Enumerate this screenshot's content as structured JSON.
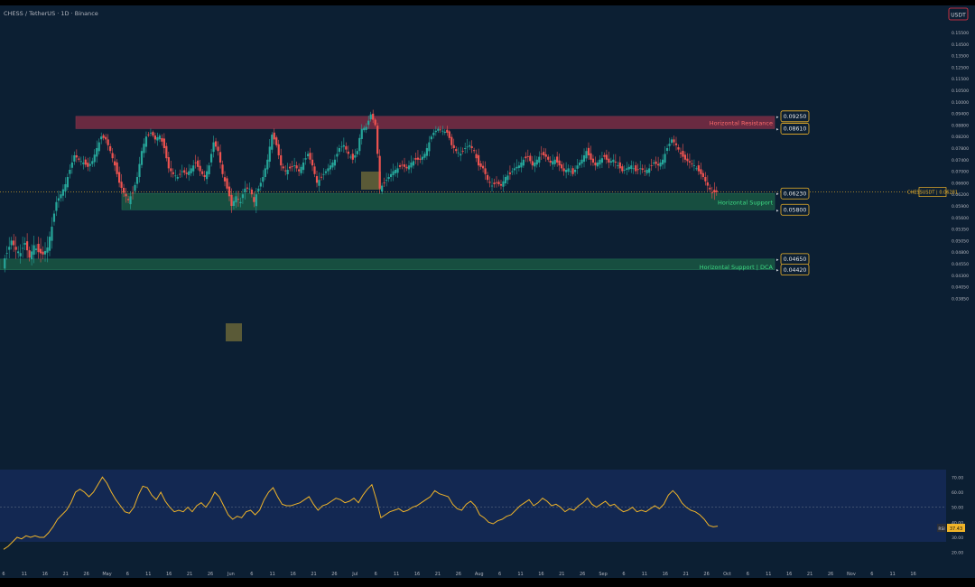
{
  "header": {
    "symbol_title": "CHESS / TetherUS · 1D · Binance",
    "currency": "USDT"
  },
  "colors": {
    "background": "#0c1f33",
    "up": "#26a69a",
    "down": "#ef5350",
    "resistance_zone": "#b8334d",
    "support_zone": "#1f6e4a",
    "rsi_line": "#f0b429",
    "label_border": "#f0b429",
    "resistance_text": "#ff6b6b",
    "support_text": "#3ddc84"
  },
  "chart_data": [
    {
      "type": "candlestick",
      "title": "CHESS / TetherUS · 1D · Binance",
      "y_ticks": [
        "0.15500",
        "0.14500",
        "0.13500",
        "0.12500",
        "0.11500",
        "0.10500",
        "0.10000",
        "0.09400",
        "0.08800",
        "0.08200",
        "0.07800",
        "0.07400",
        "0.07000",
        "0.06600",
        "0.06200",
        "0.05900",
        "0.05600",
        "0.05350",
        "0.05050",
        "0.04800",
        "0.04550",
        "0.04300",
        "0.04050",
        "0.03850"
      ],
      "x_ticks": [
        "6",
        "11",
        "16",
        "21",
        "26",
        "May",
        "6",
        "11",
        "16",
        "21",
        "26",
        "Jun",
        "6",
        "11",
        "16",
        "21",
        "26",
        "Jul",
        "6",
        "11",
        "16",
        "21",
        "26",
        "Aug",
        "6",
        "11",
        "16",
        "21",
        "26",
        "Sep",
        "6",
        "11",
        "16",
        "21",
        "26",
        "Oct",
        "6",
        "11",
        "16",
        "21",
        "26",
        "Nov",
        "6",
        "11",
        "16"
      ],
      "current_price": {
        "symbol": "CHESSUSDT",
        "value": "0.06281"
      },
      "zones": [
        {
          "name": "Horizontal Resistance",
          "top": 0.0925,
          "bottom": 0.0861,
          "top_label": "0.09250",
          "bottom_label": "0.08610",
          "kind": "resistance"
        },
        {
          "name": "Horizontal Support",
          "top": 0.0623,
          "bottom": 0.058,
          "top_label": "0.06230",
          "bottom_label": "0.05800",
          "kind": "support"
        },
        {
          "name": "Horizontal Support | DCA",
          "top": 0.0465,
          "bottom": 0.0442,
          "top_label": "0.04650",
          "bottom_label": "0.04420",
          "kind": "support"
        }
      ],
      "close_path": [
        [
          0,
          0.0455
        ],
        [
          5,
          0.0478
        ],
        [
          10,
          0.0505
        ],
        [
          15,
          0.0485
        ],
        [
          20,
          0.0478
        ],
        [
          25,
          0.05
        ],
        [
          30,
          0.0468
        ],
        [
          35,
          0.0495
        ],
        [
          40,
          0.048
        ],
        [
          45,
          0.0475
        ],
        [
          50,
          0.049
        ],
        [
          55,
          0.054
        ],
        [
          60,
          0.06
        ],
        [
          65,
          0.062
        ],
        [
          70,
          0.0655
        ],
        [
          75,
          0.0705
        ],
        [
          80,
          0.0755
        ],
        [
          85,
          0.074
        ],
        [
          90,
          0.073
        ],
        [
          95,
          0.0715
        ],
        [
          100,
          0.0735
        ],
        [
          105,
          0.078
        ],
        [
          110,
          0.082
        ],
        [
          115,
          0.081
        ],
        [
          120,
          0.077
        ],
        [
          125,
          0.072
        ],
        [
          130,
          0.066
        ],
        [
          135,
          0.0625
        ],
        [
          140,
          0.0605
        ],
        [
          145,
          0.0625
        ],
        [
          150,
          0.068
        ],
        [
          155,
          0.077
        ],
        [
          160,
          0.082
        ],
        [
          165,
          0.084
        ],
        [
          170,
          0.081
        ],
        [
          175,
          0.0825
        ],
        [
          180,
          0.078
        ],
        [
          185,
          0.071
        ],
        [
          190,
          0.069
        ],
        [
          195,
          0.068
        ],
        [
          200,
          0.07
        ],
        [
          205,
          0.069
        ],
        [
          210,
          0.071
        ],
        [
          215,
          0.073
        ],
        [
          220,
          0.07
        ],
        [
          225,
          0.068
        ],
        [
          230,
          0.072
        ],
        [
          235,
          0.08
        ],
        [
          240,
          0.077
        ],
        [
          245,
          0.069
        ],
        [
          250,
          0.064
        ],
        [
          255,
          0.059
        ],
        [
          260,
          0.0615
        ],
        [
          265,
          0.06
        ],
        [
          270,
          0.064
        ],
        [
          275,
          0.064
        ],
        [
          280,
          0.06
        ],
        [
          285,
          0.064
        ],
        [
          290,
          0.068
        ],
        [
          295,
          0.074
        ],
        [
          300,
          0.083
        ],
        [
          305,
          0.079
        ],
        [
          310,
          0.072
        ],
        [
          315,
          0.07
        ],
        [
          320,
          0.071
        ],
        [
          325,
          0.072
        ],
        [
          330,
          0.07
        ],
        [
          335,
          0.073
        ],
        [
          340,
          0.076
        ],
        [
          345,
          0.072
        ],
        [
          350,
          0.066
        ],
        [
          355,
          0.068
        ],
        [
          360,
          0.07
        ],
        [
          365,
          0.072
        ],
        [
          370,
          0.074
        ],
        [
          375,
          0.078
        ],
        [
          380,
          0.079
        ],
        [
          385,
          0.076
        ],
        [
          390,
          0.074
        ],
        [
          395,
          0.077
        ],
        [
          400,
          0.086
        ],
        [
          405,
          0.087
        ],
        [
          410,
          0.0935
        ],
        [
          415,
          0.088
        ],
        [
          420,
          0.064
        ],
        [
          425,
          0.066
        ],
        [
          430,
          0.068
        ],
        [
          435,
          0.07
        ],
        [
          440,
          0.071
        ],
        [
          445,
          0.072
        ],
        [
          450,
          0.071
        ],
        [
          455,
          0.073
        ],
        [
          460,
          0.074
        ],
        [
          465,
          0.074
        ],
        [
          470,
          0.076
        ],
        [
          475,
          0.08
        ],
        [
          480,
          0.084
        ],
        [
          485,
          0.086
        ],
        [
          490,
          0.085
        ],
        [
          495,
          0.084
        ],
        [
          500,
          0.079
        ],
        [
          505,
          0.077
        ],
        [
          510,
          0.076
        ],
        [
          515,
          0.078
        ],
        [
          520,
          0.079
        ],
        [
          525,
          0.077
        ],
        [
          530,
          0.072
        ],
        [
          535,
          0.071
        ],
        [
          540,
          0.067
        ],
        [
          545,
          0.065
        ],
        [
          550,
          0.066
        ],
        [
          555,
          0.065
        ],
        [
          560,
          0.068
        ],
        [
          565,
          0.069
        ],
        [
          570,
          0.071
        ],
        [
          575,
          0.072
        ],
        [
          580,
          0.074
        ],
        [
          585,
          0.075
        ],
        [
          590,
          0.072
        ],
        [
          595,
          0.074
        ],
        [
          600,
          0.076
        ],
        [
          605,
          0.075
        ],
        [
          610,
          0.073
        ],
        [
          615,
          0.074
        ],
        [
          620,
          0.072
        ],
        [
          625,
          0.07
        ],
        [
          630,
          0.071
        ],
        [
          635,
          0.069
        ],
        [
          640,
          0.072
        ],
        [
          645,
          0.074
        ],
        [
          650,
          0.077
        ],
        [
          655,
          0.074
        ],
        [
          660,
          0.072
        ],
        [
          665,
          0.074
        ],
        [
          670,
          0.075
        ],
        [
          675,
          0.073
        ],
        [
          680,
          0.074
        ],
        [
          685,
          0.072
        ],
        [
          690,
          0.07
        ],
        [
          695,
          0.071
        ],
        [
          700,
          0.072
        ],
        [
          705,
          0.07
        ],
        [
          710,
          0.071
        ],
        [
          715,
          0.07
        ],
        [
          720,
          0.071
        ],
        [
          725,
          0.073
        ],
        [
          730,
          0.072
        ],
        [
          735,
          0.074
        ],
        [
          740,
          0.078
        ],
        [
          745,
          0.081
        ],
        [
          750,
          0.079
        ],
        [
          755,
          0.076
        ],
        [
          760,
          0.074
        ],
        [
          765,
          0.073
        ],
        [
          770,
          0.072
        ],
        [
          775,
          0.07
        ],
        [
          780,
          0.068
        ],
        [
          785,
          0.065
        ],
        [
          790,
          0.0625
        ],
        [
          795,
          0.0628
        ]
      ]
    },
    {
      "type": "line",
      "title": "RSI",
      "indicator_label": "RSI",
      "current_value": "37.43",
      "y_ticks": [
        "70.00",
        "60.00",
        "50.00",
        "40.00",
        "30.00",
        "20.00"
      ],
      "ylim": [
        15,
        75
      ],
      "midline": 50,
      "values": [
        [
          0,
          22
        ],
        [
          5,
          24
        ],
        [
          10,
          27
        ],
        [
          15,
          30
        ],
        [
          20,
          29
        ],
        [
          25,
          31
        ],
        [
          30,
          30
        ],
        [
          35,
          31
        ],
        [
          40,
          30
        ],
        [
          45,
          30
        ],
        [
          50,
          33
        ],
        [
          55,
          37
        ],
        [
          60,
          42
        ],
        [
          65,
          45
        ],
        [
          70,
          48
        ],
        [
          75,
          53
        ],
        [
          80,
          60
        ],
        [
          85,
          62
        ],
        [
          90,
          60
        ],
        [
          95,
          57
        ],
        [
          100,
          60
        ],
        [
          105,
          65
        ],
        [
          110,
          70
        ],
        [
          115,
          66
        ],
        [
          120,
          60
        ],
        [
          125,
          55
        ],
        [
          130,
          51
        ],
        [
          135,
          47
        ],
        [
          140,
          46
        ],
        [
          145,
          50
        ],
        [
          150,
          58
        ],
        [
          155,
          64
        ],
        [
          160,
          63
        ],
        [
          165,
          58
        ],
        [
          170,
          55
        ],
        [
          175,
          60
        ],
        [
          180,
          54
        ],
        [
          185,
          50
        ],
        [
          190,
          47
        ],
        [
          195,
          48
        ],
        [
          200,
          47
        ],
        [
          205,
          50
        ],
        [
          210,
          47
        ],
        [
          215,
          51
        ],
        [
          220,
          53
        ],
        [
          225,
          50
        ],
        [
          230,
          54
        ],
        [
          235,
          60
        ],
        [
          240,
          57
        ],
        [
          245,
          51
        ],
        [
          250,
          45
        ],
        [
          255,
          42
        ],
        [
          260,
          44
        ],
        [
          265,
          43
        ],
        [
          270,
          47
        ],
        [
          275,
          48
        ],
        [
          280,
          45
        ],
        [
          285,
          48
        ],
        [
          290,
          55
        ],
        [
          295,
          60
        ],
        [
          300,
          63
        ],
        [
          305,
          57
        ],
        [
          310,
          52
        ],
        [
          315,
          51
        ],
        [
          320,
          51
        ],
        [
          325,
          52
        ],
        [
          330,
          53
        ],
        [
          335,
          55
        ],
        [
          340,
          57
        ],
        [
          345,
          52
        ],
        [
          350,
          48
        ],
        [
          355,
          51
        ],
        [
          360,
          52
        ],
        [
          365,
          54
        ],
        [
          370,
          56
        ],
        [
          375,
          55
        ],
        [
          380,
          53
        ],
        [
          385,
          54
        ],
        [
          390,
          56
        ],
        [
          395,
          53
        ],
        [
          400,
          58
        ],
        [
          405,
          62
        ],
        [
          410,
          65
        ],
        [
          415,
          55
        ],
        [
          420,
          43
        ],
        [
          425,
          45
        ],
        [
          430,
          47
        ],
        [
          435,
          48
        ],
        [
          440,
          49
        ],
        [
          445,
          47
        ],
        [
          450,
          48
        ],
        [
          455,
          50
        ],
        [
          460,
          51
        ],
        [
          465,
          53
        ],
        [
          470,
          55
        ],
        [
          475,
          57
        ],
        [
          480,
          61
        ],
        [
          485,
          59
        ],
        [
          490,
          58
        ],
        [
          495,
          57
        ],
        [
          500,
          52
        ],
        [
          505,
          49
        ],
        [
          510,
          48
        ],
        [
          515,
          52
        ],
        [
          520,
          54
        ],
        [
          525,
          51
        ],
        [
          530,
          45
        ],
        [
          535,
          43
        ],
        [
          540,
          40
        ],
        [
          545,
          39
        ],
        [
          550,
          41
        ],
        [
          555,
          42
        ],
        [
          560,
          44
        ],
        [
          565,
          45
        ],
        [
          570,
          48
        ],
        [
          575,
          51
        ],
        [
          580,
          53
        ],
        [
          585,
          55
        ],
        [
          590,
          51
        ],
        [
          595,
          53
        ],
        [
          600,
          56
        ],
        [
          605,
          54
        ],
        [
          610,
          51
        ],
        [
          615,
          52
        ],
        [
          620,
          50
        ],
        [
          625,
          47
        ],
        [
          630,
          49
        ],
        [
          635,
          48
        ],
        [
          640,
          51
        ],
        [
          645,
          53
        ],
        [
          650,
          56
        ],
        [
          655,
          52
        ],
        [
          660,
          50
        ],
        [
          665,
          52
        ],
        [
          670,
          54
        ],
        [
          675,
          51
        ],
        [
          680,
          52
        ],
        [
          685,
          49
        ],
        [
          690,
          47
        ],
        [
          695,
          48
        ],
        [
          700,
          50
        ],
        [
          705,
          47
        ],
        [
          710,
          48
        ],
        [
          715,
          47
        ],
        [
          720,
          49
        ],
        [
          725,
          51
        ],
        [
          730,
          49
        ],
        [
          735,
          52
        ],
        [
          740,
          58
        ],
        [
          745,
          61
        ],
        [
          750,
          58
        ],
        [
          755,
          53
        ],
        [
          760,
          50
        ],
        [
          765,
          48
        ],
        [
          770,
          47
        ],
        [
          775,
          45
        ],
        [
          780,
          42
        ],
        [
          785,
          38
        ],
        [
          790,
          37
        ],
        [
          795,
          37.4
        ]
      ]
    }
  ]
}
